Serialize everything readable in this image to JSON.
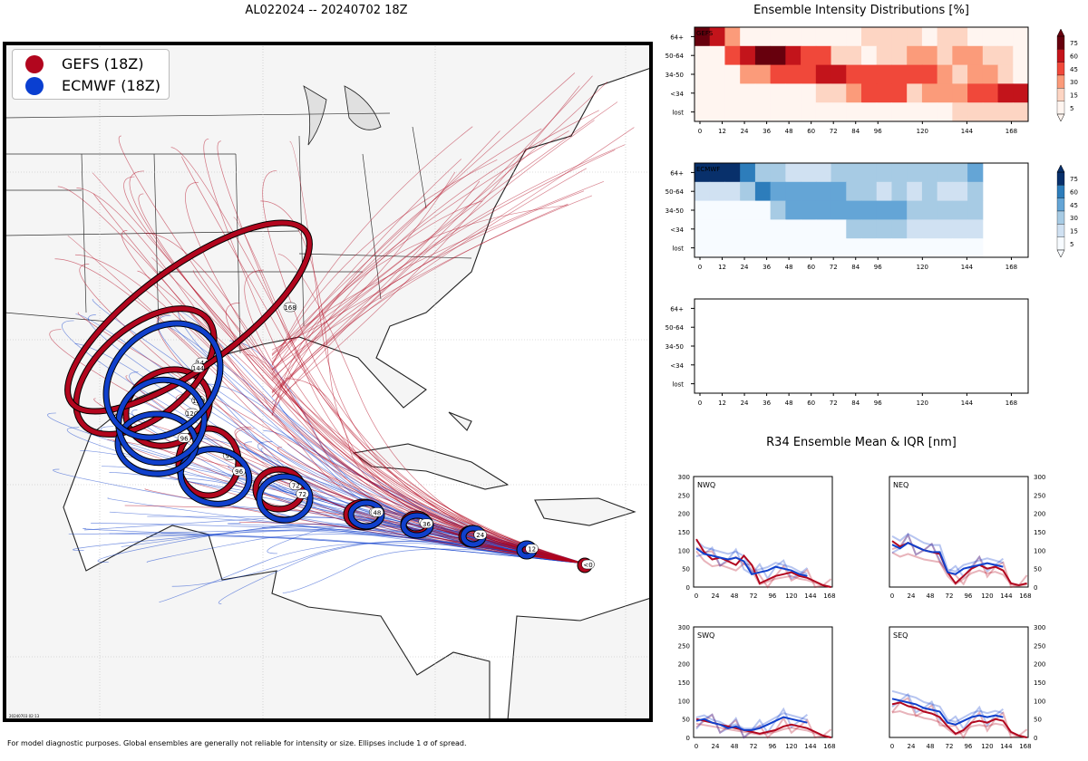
{
  "header": {
    "title": "AL022024 -- 20240702 18Z",
    "footnote": "For model diagnostic purposes. Global ensembles are generally not reliable for intensity or size. Ellipses include 1 σ of spread.",
    "stamp": "20240703 02:13"
  },
  "legend": [
    {
      "label": "GEFS (18Z)",
      "color": "#b2061e"
    },
    {
      "label": "ECMWF (18Z)",
      "color": "#0a3fd1"
    }
  ],
  "colors": {
    "gefs": "#b2061e",
    "ecmwf": "#1040cc",
    "land": "#f5f5f5",
    "ocean": "#ffffff"
  },
  "chart_data": [
    {
      "type": "map",
      "title": "AL022024 -- 20240702 18Z",
      "gefs_ellipses": [
        {
          "hour": "<0"
        },
        {
          "hour": "24"
        },
        {
          "hour": "36"
        },
        {
          "hour": "48"
        },
        {
          "hour": "72"
        },
        {
          "hour": "96"
        },
        {
          "hour": "120"
        },
        {
          "hour": "144"
        },
        {
          "hour": "168"
        }
      ],
      "ecmwf_ellipses": [
        {
          "hour": "12"
        },
        {
          "hour": "24"
        },
        {
          "hour": "36"
        },
        {
          "hour": "48"
        },
        {
          "hour": "72"
        },
        {
          "hour": "96"
        },
        {
          "hour": "96"
        },
        {
          "hour": "120"
        },
        {
          "hour": "144"
        }
      ]
    },
    {
      "type": "heatmap",
      "title": "Ensemble Intensity Distributions [%]",
      "panels": [
        "GEFS",
        "ECMWF",
        ""
      ],
      "rows": [
        "64+",
        "50-64",
        "34-50",
        "<34",
        "lost"
      ],
      "xticks": [
        "0",
        "12",
        "24",
        "36",
        "48",
        "60",
        "72",
        "84",
        "96",
        "120",
        "144",
        "168"
      ],
      "colorbar_ticks": [
        "75",
        "60",
        "45",
        "30",
        "15",
        "5"
      ]
    },
    {
      "type": "line",
      "title": "R34 Ensemble Mean & IQR [nm]",
      "panels": [
        "NWQ",
        "NEQ",
        "SWQ",
        "SEQ"
      ],
      "xticks": [
        "0",
        "24",
        "48",
        "72",
        "96",
        "120",
        "144",
        "168"
      ],
      "yticks": [
        "0",
        "50",
        "100",
        "150",
        "200",
        "250",
        "300"
      ],
      "ylim": [
        0,
        300
      ],
      "series": {
        "NWQ": {
          "gefs": [
            130,
            95,
            75,
            80,
            70,
            60,
            85,
            60,
            10,
            20,
            30,
            35,
            40,
            30,
            25,
            15,
            5,
            0
          ],
          "ecmwf": [
            105,
            90,
            85,
            80,
            75,
            80,
            70,
            35,
            40,
            45,
            55,
            50,
            45,
            35,
            30
          ]
        },
        "NEQ": {
          "gefs": [
            125,
            110,
            120,
            110,
            100,
            95,
            90,
            40,
            10,
            30,
            50,
            60,
            50,
            55,
            45,
            10,
            5,
            10
          ],
          "ecmwf": [
            115,
            105,
            120,
            110,
            100,
            95,
            95,
            40,
            35,
            50,
            55,
            60,
            65,
            60,
            55
          ]
        },
        "SWQ": {
          "gefs": [
            50,
            45,
            40,
            35,
            30,
            25,
            20,
            15,
            10,
            15,
            20,
            30,
            35,
            30,
            25,
            15,
            5,
            0
          ],
          "ecmwf": [
            45,
            50,
            40,
            35,
            25,
            30,
            20,
            20,
            25,
            35,
            45,
            55,
            50,
            45,
            40
          ]
        },
        "SEQ": {
          "gefs": [
            90,
            95,
            85,
            80,
            70,
            65,
            55,
            30,
            10,
            20,
            40,
            45,
            40,
            50,
            45,
            15,
            5,
            0
          ],
          "ecmwf": [
            105,
            100,
            95,
            90,
            80,
            75,
            70,
            40,
            35,
            45,
            55,
            60,
            55,
            60,
            55
          ]
        }
      }
    }
  ]
}
